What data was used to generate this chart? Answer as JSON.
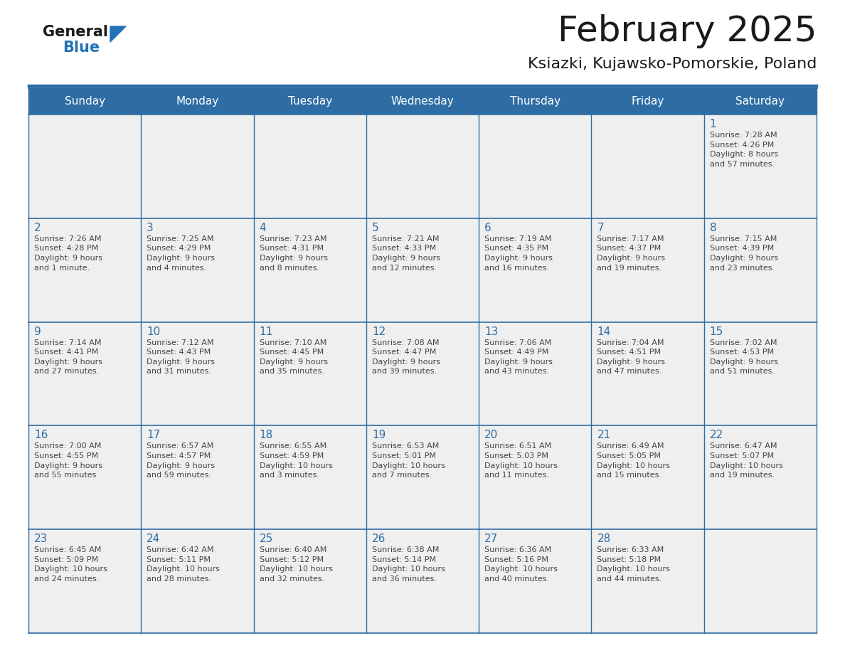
{
  "title": "February 2025",
  "subtitle": "Ksiazki, Kujawsko-Pomorskie, Poland",
  "header_bg": "#2E6DA4",
  "header_text_color": "#FFFFFF",
  "cell_bg_light": "#EFEFEF",
  "day_number_color": "#2E6DA4",
  "cell_text_color": "#444444",
  "grid_line_color": "#2E6DA4",
  "days_of_week": [
    "Sunday",
    "Monday",
    "Tuesday",
    "Wednesday",
    "Thursday",
    "Friday",
    "Saturday"
  ],
  "weeks": [
    [
      {
        "day": null,
        "info": null
      },
      {
        "day": null,
        "info": null
      },
      {
        "day": null,
        "info": null
      },
      {
        "day": null,
        "info": null
      },
      {
        "day": null,
        "info": null
      },
      {
        "day": null,
        "info": null
      },
      {
        "day": 1,
        "info": "Sunrise: 7:28 AM\nSunset: 4:26 PM\nDaylight: 8 hours\nand 57 minutes."
      }
    ],
    [
      {
        "day": 2,
        "info": "Sunrise: 7:26 AM\nSunset: 4:28 PM\nDaylight: 9 hours\nand 1 minute."
      },
      {
        "day": 3,
        "info": "Sunrise: 7:25 AM\nSunset: 4:29 PM\nDaylight: 9 hours\nand 4 minutes."
      },
      {
        "day": 4,
        "info": "Sunrise: 7:23 AM\nSunset: 4:31 PM\nDaylight: 9 hours\nand 8 minutes."
      },
      {
        "day": 5,
        "info": "Sunrise: 7:21 AM\nSunset: 4:33 PM\nDaylight: 9 hours\nand 12 minutes."
      },
      {
        "day": 6,
        "info": "Sunrise: 7:19 AM\nSunset: 4:35 PM\nDaylight: 9 hours\nand 16 minutes."
      },
      {
        "day": 7,
        "info": "Sunrise: 7:17 AM\nSunset: 4:37 PM\nDaylight: 9 hours\nand 19 minutes."
      },
      {
        "day": 8,
        "info": "Sunrise: 7:15 AM\nSunset: 4:39 PM\nDaylight: 9 hours\nand 23 minutes."
      }
    ],
    [
      {
        "day": 9,
        "info": "Sunrise: 7:14 AM\nSunset: 4:41 PM\nDaylight: 9 hours\nand 27 minutes."
      },
      {
        "day": 10,
        "info": "Sunrise: 7:12 AM\nSunset: 4:43 PM\nDaylight: 9 hours\nand 31 minutes."
      },
      {
        "day": 11,
        "info": "Sunrise: 7:10 AM\nSunset: 4:45 PM\nDaylight: 9 hours\nand 35 minutes."
      },
      {
        "day": 12,
        "info": "Sunrise: 7:08 AM\nSunset: 4:47 PM\nDaylight: 9 hours\nand 39 minutes."
      },
      {
        "day": 13,
        "info": "Sunrise: 7:06 AM\nSunset: 4:49 PM\nDaylight: 9 hours\nand 43 minutes."
      },
      {
        "day": 14,
        "info": "Sunrise: 7:04 AM\nSunset: 4:51 PM\nDaylight: 9 hours\nand 47 minutes."
      },
      {
        "day": 15,
        "info": "Sunrise: 7:02 AM\nSunset: 4:53 PM\nDaylight: 9 hours\nand 51 minutes."
      }
    ],
    [
      {
        "day": 16,
        "info": "Sunrise: 7:00 AM\nSunset: 4:55 PM\nDaylight: 9 hours\nand 55 minutes."
      },
      {
        "day": 17,
        "info": "Sunrise: 6:57 AM\nSunset: 4:57 PM\nDaylight: 9 hours\nand 59 minutes."
      },
      {
        "day": 18,
        "info": "Sunrise: 6:55 AM\nSunset: 4:59 PM\nDaylight: 10 hours\nand 3 minutes."
      },
      {
        "day": 19,
        "info": "Sunrise: 6:53 AM\nSunset: 5:01 PM\nDaylight: 10 hours\nand 7 minutes."
      },
      {
        "day": 20,
        "info": "Sunrise: 6:51 AM\nSunset: 5:03 PM\nDaylight: 10 hours\nand 11 minutes."
      },
      {
        "day": 21,
        "info": "Sunrise: 6:49 AM\nSunset: 5:05 PM\nDaylight: 10 hours\nand 15 minutes."
      },
      {
        "day": 22,
        "info": "Sunrise: 6:47 AM\nSunset: 5:07 PM\nDaylight: 10 hours\nand 19 minutes."
      }
    ],
    [
      {
        "day": 23,
        "info": "Sunrise: 6:45 AM\nSunset: 5:09 PM\nDaylight: 10 hours\nand 24 minutes."
      },
      {
        "day": 24,
        "info": "Sunrise: 6:42 AM\nSunset: 5:11 PM\nDaylight: 10 hours\nand 28 minutes."
      },
      {
        "day": 25,
        "info": "Sunrise: 6:40 AM\nSunset: 5:12 PM\nDaylight: 10 hours\nand 32 minutes."
      },
      {
        "day": 26,
        "info": "Sunrise: 6:38 AM\nSunset: 5:14 PM\nDaylight: 10 hours\nand 36 minutes."
      },
      {
        "day": 27,
        "info": "Sunrise: 6:36 AM\nSunset: 5:16 PM\nDaylight: 10 hours\nand 40 minutes."
      },
      {
        "day": 28,
        "info": "Sunrise: 6:33 AM\nSunset: 5:18 PM\nDaylight: 10 hours\nand 44 minutes."
      },
      {
        "day": null,
        "info": null
      }
    ]
  ],
  "logo_general_color": "#1a1a1a",
  "logo_blue_color": "#2272B5",
  "logo_triangle_color": "#2272B5",
  "title_fontsize": 36,
  "subtitle_fontsize": 16,
  "header_fontsize": 11,
  "day_num_fontsize": 11,
  "cell_text_fontsize": 8
}
